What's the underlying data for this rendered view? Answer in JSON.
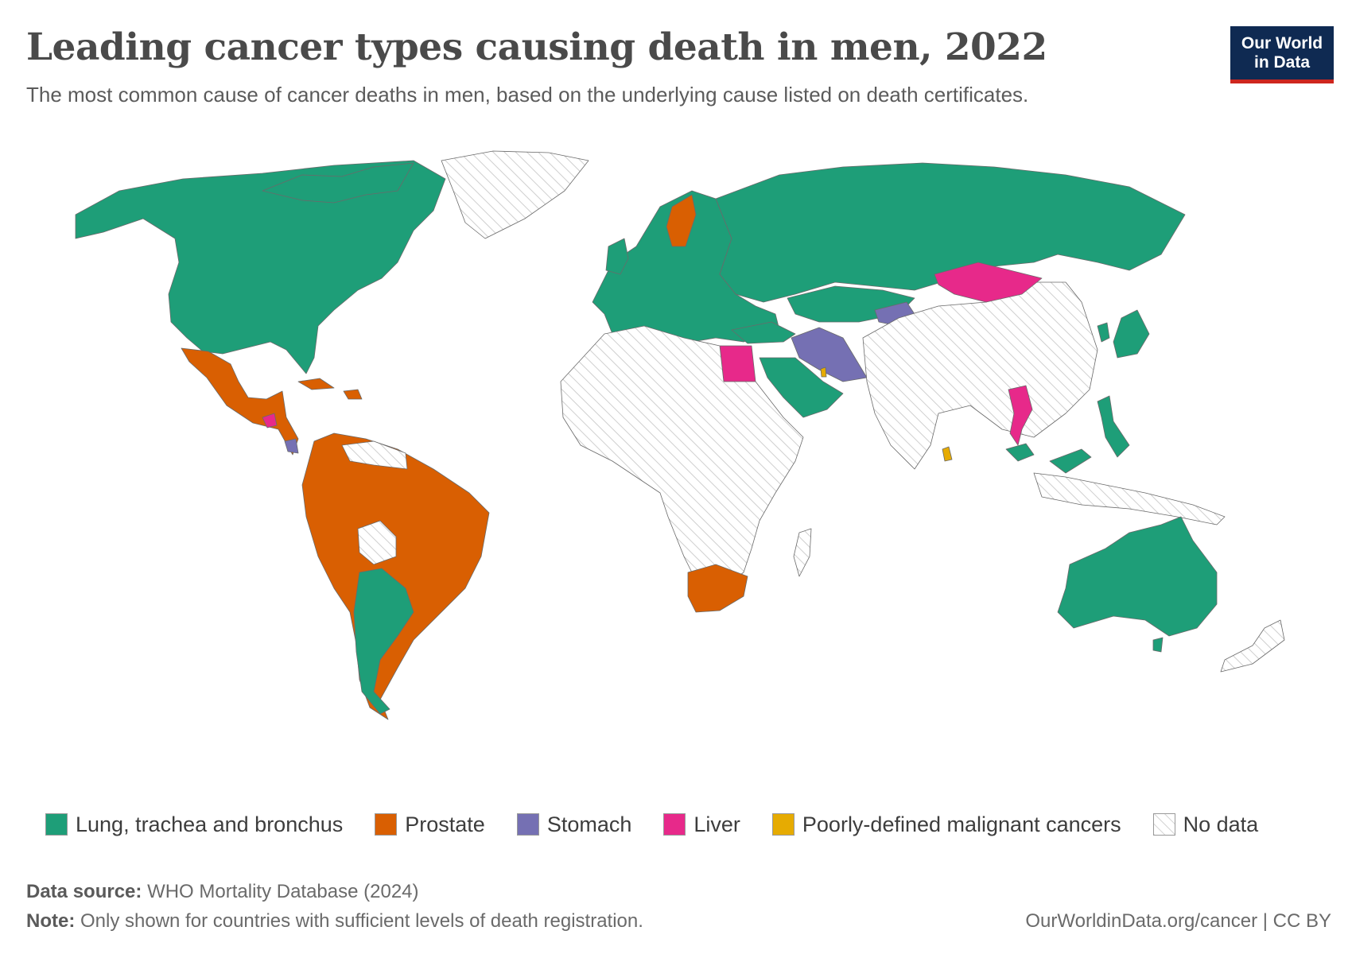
{
  "header": {
    "title": "Leading cancer types causing death in men, 2022",
    "subtitle": "The most common cause of cancer deaths in men, based on the underlying cause listed on death certificates."
  },
  "logo": {
    "line1": "Our World",
    "line2": "in Data"
  },
  "colors": {
    "lung": "#1e9e78",
    "prostate": "#d95f02",
    "stomach": "#7570b3",
    "liver": "#e7298a",
    "poorly_defined": "#e6ab02",
    "no_data_stripe": "#c8c8c8"
  },
  "legend": [
    {
      "key": "lung",
      "label": "Lung, trachea and bronchus"
    },
    {
      "key": "prostate",
      "label": "Prostate"
    },
    {
      "key": "stomach",
      "label": "Stomach"
    },
    {
      "key": "liver",
      "label": "Liver"
    },
    {
      "key": "poorly_defined",
      "label": "Poorly-defined malignant cancers"
    },
    {
      "key": "no_data",
      "label": "No data"
    }
  ],
  "footer": {
    "source_label": "Data source:",
    "source_text": "WHO Mortality Database (2024)",
    "note_label": "Note:",
    "note_text": "Only shown for countries with sufficient levels of death registration.",
    "credit": "OurWorldinData.org/cancer | CC BY"
  }
}
